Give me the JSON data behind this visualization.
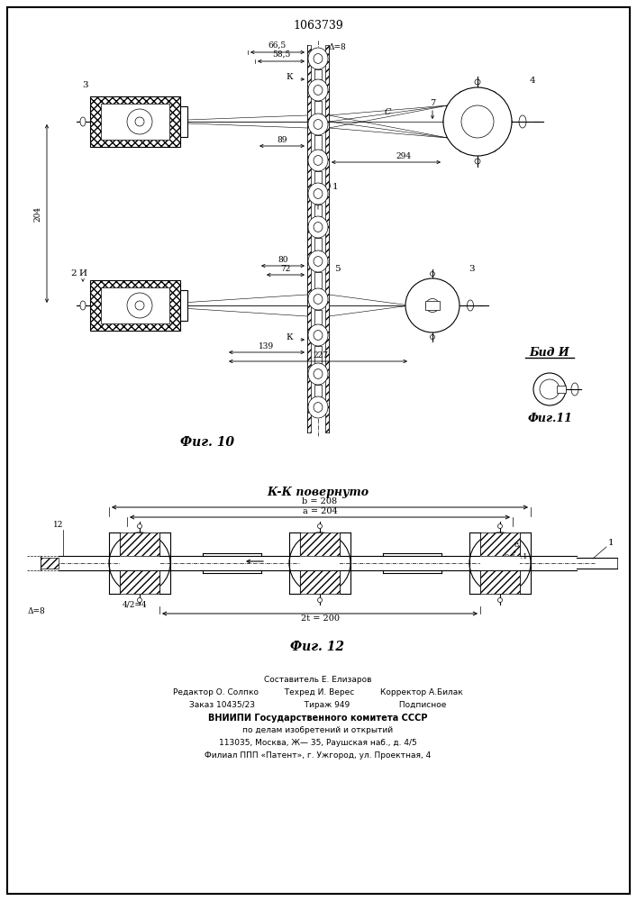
{
  "title": "1063739",
  "fig10_label": "Фиг. 10",
  "fig11_label": "Фиг.11",
  "fig12_label": "Фиг. 12",
  "vid_label": "Бид И",
  "kk_label": "К-К повернуто",
  "background_color": "#ffffff",
  "line_color": "#000000",
  "footer_lines": [
    "Составитель Е. Елизаров",
    "Редактор О. Солпко          Техред И. Верес          Корректор А.Билак",
    "Заказ 10435/23                   Тираж 949                   Подписное",
    "ВНИИПИ Государственного комитета СССР",
    "по делам изобретений и открытий",
    "113035, Москва, Ж— 35, Раушская наб., д. 4/5",
    "Филиал ППП «Патент», г. Ужгород, ул. Проектная, 4"
  ]
}
